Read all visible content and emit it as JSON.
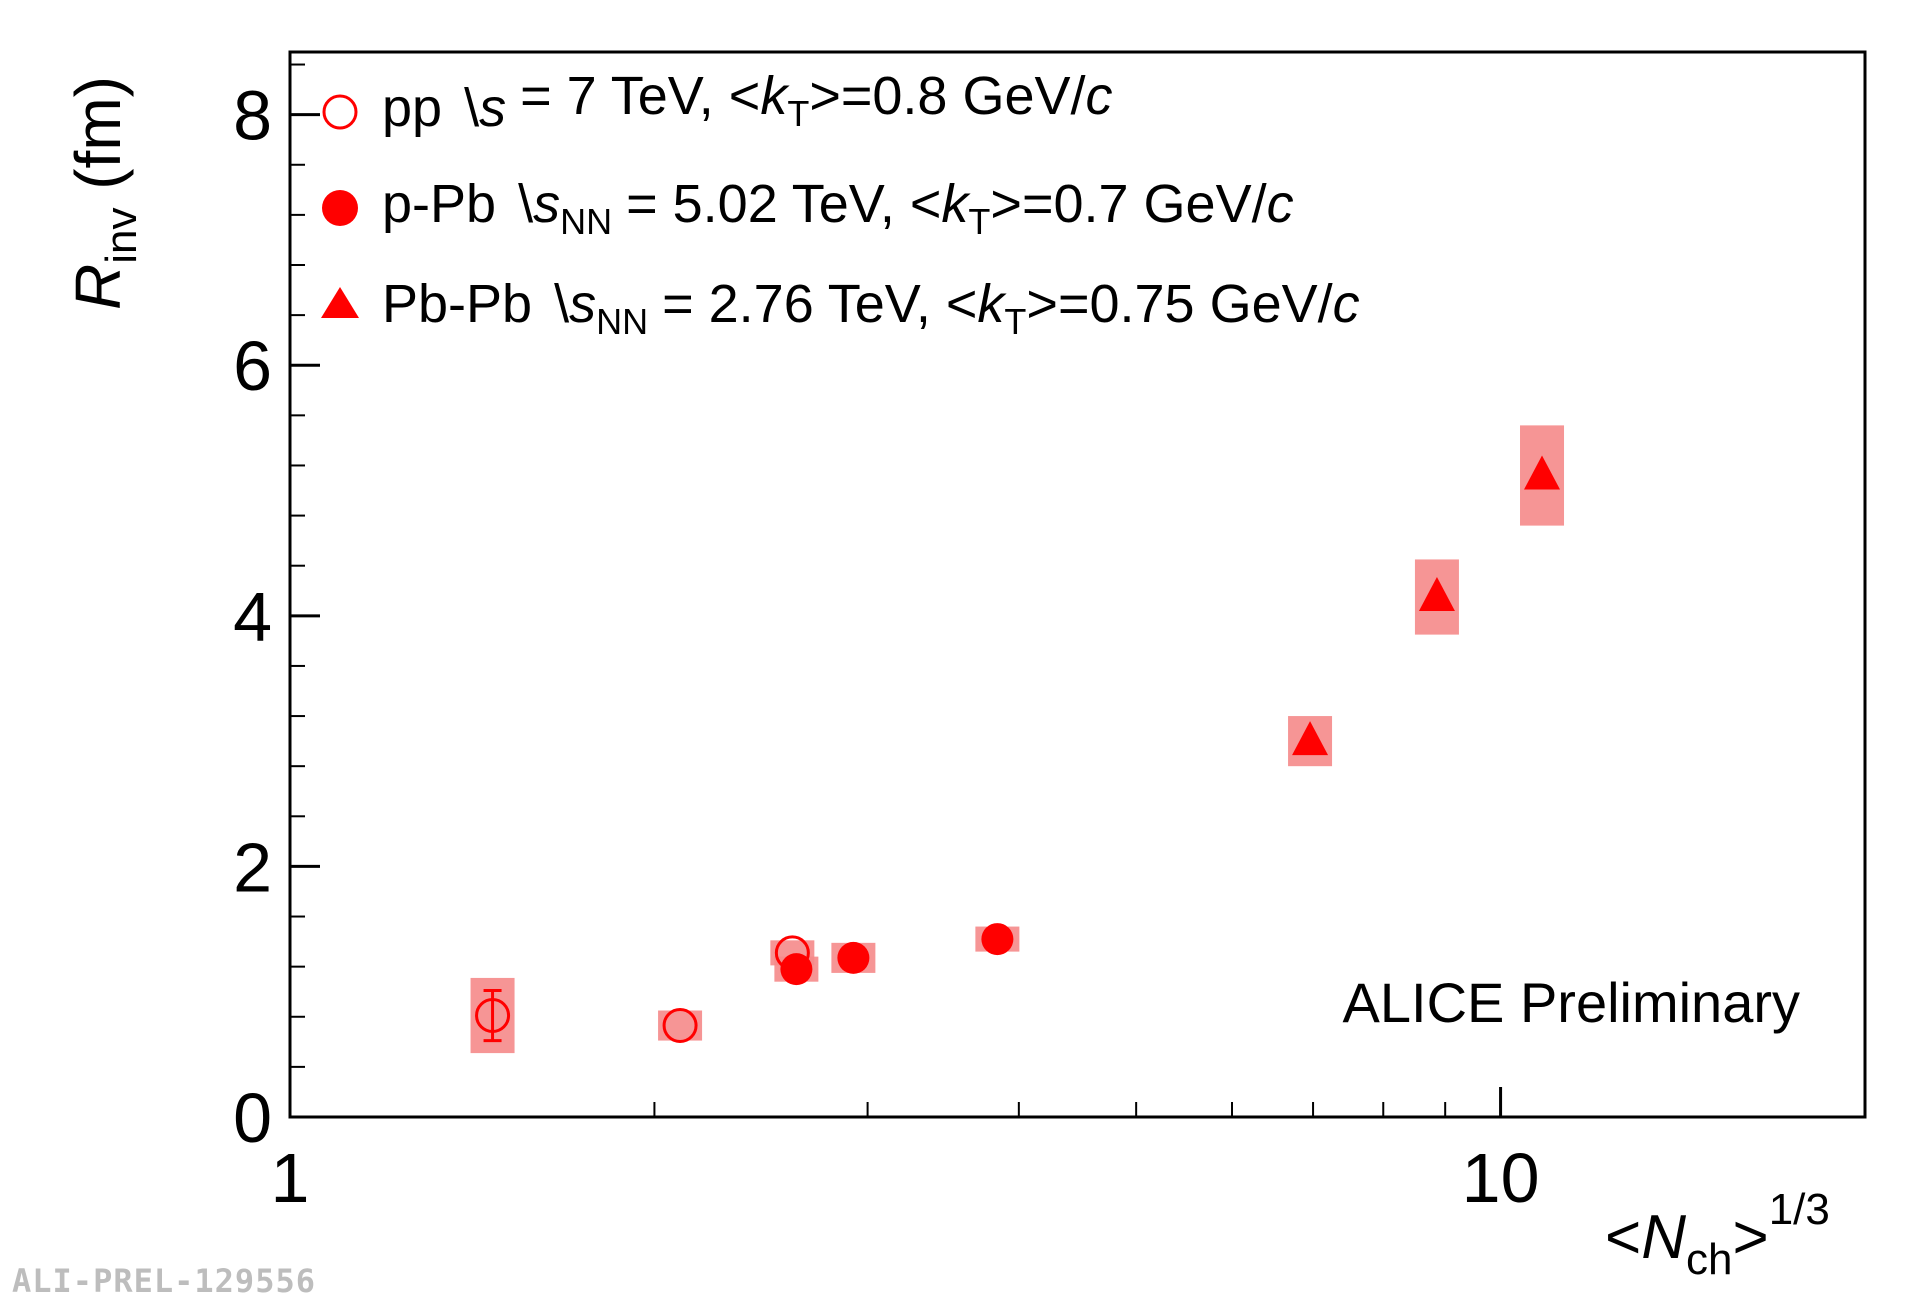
{
  "chart_data": {
    "type": "scatter",
    "x_scale": "log",
    "xlim": [
      1,
      20
    ],
    "ylim": [
      0,
      8.5
    ],
    "xlabel": "<Nch>^1/3",
    "ylabel": "Rinv (fm)",
    "x_ticks": [
      1,
      10
    ],
    "x_tick_labels": [
      "1",
      "10"
    ],
    "y_ticks": [
      0,
      2,
      4,
      6,
      8
    ],
    "y_tick_labels": [
      "0",
      "2",
      "4",
      "6",
      "8"
    ],
    "grid": false,
    "legend_position": "top-left",
    "colors": {
      "marker": "#ff0000",
      "syst_box": "#f58a8a"
    },
    "series": [
      {
        "name": "pp √s = 7 TeV, <kT>=0.8 GeV/c",
        "marker": "open-circle",
        "points": [
          {
            "x": 1.47,
            "y": 0.81,
            "stat_err": 0.2,
            "syst_err": 0.3
          },
          {
            "x": 2.1,
            "y": 0.73,
            "stat_err": 0.03,
            "syst_err": 0.12
          },
          {
            "x": 2.6,
            "y": 1.31,
            "stat_err": 0.03,
            "syst_err": 0.1
          }
        ]
      },
      {
        "name": "p-Pb √sNN = 5.02 TeV, <kT>=0.7 GeV/c",
        "marker": "filled-circle",
        "points": [
          {
            "x": 2.62,
            "y": 1.18,
            "stat_err": 0.02,
            "syst_err": 0.1
          },
          {
            "x": 2.92,
            "y": 1.27,
            "stat_err": 0.02,
            "syst_err": 0.12
          },
          {
            "x": 3.84,
            "y": 1.42,
            "stat_err": 0.02,
            "syst_err": 0.1
          }
        ]
      },
      {
        "name": "Pb-Pb √sNN = 2.76 TeV, <kT>=0.75 GeV/c",
        "marker": "filled-triangle",
        "points": [
          {
            "x": 6.96,
            "y": 3.0,
            "stat_err": 0.03,
            "syst_err": 0.2
          },
          {
            "x": 8.86,
            "y": 4.15,
            "stat_err": 0.04,
            "syst_err": 0.3
          },
          {
            "x": 10.82,
            "y": 5.12,
            "stat_err": 0.05,
            "syst_err": 0.4
          }
        ]
      }
    ],
    "legend": [
      {
        "prefix": "pp",
        "sqrt": "s",
        "sub": "",
        "energy": "= 7 TeV, <",
        "k": "k",
        "ksub": "T",
        "suffix": ">=0.8 GeV/",
        "c": "c"
      },
      {
        "prefix": "p-Pb",
        "sqrt": "s",
        "sub": "NN",
        "energy": "= 5.02 TeV, <",
        "k": "k",
        "ksub": "T",
        "suffix": ">=0.7 GeV/",
        "c": "c"
      },
      {
        "prefix": "Pb-Pb",
        "sqrt": "s",
        "sub": "NN",
        "energy": "= 2.76 TeV, <",
        "k": "k",
        "ksub": "T",
        "suffix": ">=0.75 GeV/",
        "c": "c"
      }
    ],
    "ylabel_parts": {
      "main": "R",
      "sub": "inv",
      "unit": " (fm)"
    },
    "xlabel_parts": {
      "open": "<",
      "main": "N",
      "sub": "ch",
      "close": ">",
      "sup": "1/3"
    },
    "annotation": "ALICE Preliminary",
    "watermark": "ALI-PREL-129556"
  }
}
